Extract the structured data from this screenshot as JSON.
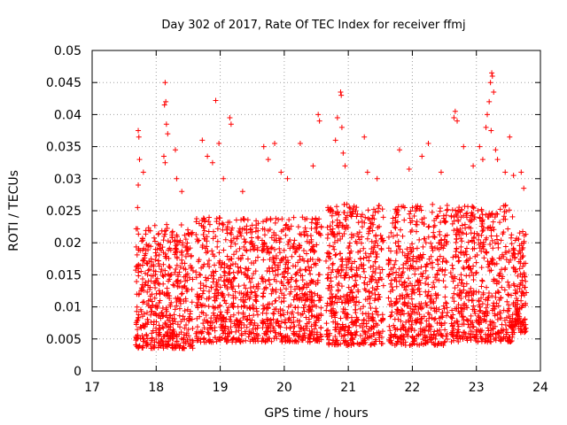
{
  "chart_data": {
    "type": "scatter",
    "title": "Day 302 of 2017, Rate Of TEC Index for receiver ffmj",
    "xlabel": "GPS time / hours",
    "ylabel": "ROTI / TECUs",
    "xlim": [
      17,
      24
    ],
    "ylim": [
      0,
      0.05
    ],
    "xticks": [
      "17",
      "18",
      "19",
      "20",
      "21",
      "22",
      "23",
      "24"
    ],
    "yticks": [
      "0",
      "0.005",
      "0.01",
      "0.015",
      "0.02",
      "0.025",
      "0.03",
      "0.035",
      "0.04",
      "0.045",
      "0.05"
    ],
    "grid": true,
    "marker": "+",
    "color": "#ff0000",
    "clusters": [
      {
        "x_start": 17.68,
        "x_end": 18.58,
        "y_min": 0.0035,
        "y_max": 0.023,
        "count": 520
      },
      {
        "x_start": 18.62,
        "x_end": 19.6,
        "y_min": 0.0045,
        "y_max": 0.024,
        "count": 520
      },
      {
        "x_start": 19.65,
        "x_end": 20.58,
        "y_min": 0.0045,
        "y_max": 0.024,
        "count": 520
      },
      {
        "x_start": 20.65,
        "x_end": 21.55,
        "y_min": 0.004,
        "y_max": 0.026,
        "count": 540
      },
      {
        "x_start": 21.62,
        "x_end": 22.55,
        "y_min": 0.004,
        "y_max": 0.026,
        "count": 520
      },
      {
        "x_start": 22.6,
        "x_end": 23.6,
        "y_min": 0.0045,
        "y_max": 0.026,
        "count": 560
      },
      {
        "x_start": 23.6,
        "x_end": 23.78,
        "y_min": 0.006,
        "y_max": 0.022,
        "count": 120
      }
    ],
    "outliers": [
      {
        "x": 17.72,
        "y": 0.0375
      },
      {
        "x": 17.73,
        "y": 0.0365
      },
      {
        "x": 17.72,
        "y": 0.029
      },
      {
        "x": 17.74,
        "y": 0.033
      },
      {
        "x": 17.71,
        "y": 0.0255
      },
      {
        "x": 17.8,
        "y": 0.031
      },
      {
        "x": 18.14,
        "y": 0.045
      },
      {
        "x": 18.15,
        "y": 0.042
      },
      {
        "x": 18.13,
        "y": 0.0415
      },
      {
        "x": 18.16,
        "y": 0.0385
      },
      {
        "x": 18.18,
        "y": 0.037
      },
      {
        "x": 18.12,
        "y": 0.0335
      },
      {
        "x": 18.14,
        "y": 0.0325
      },
      {
        "x": 18.3,
        "y": 0.0345
      },
      {
        "x": 18.32,
        "y": 0.03
      },
      {
        "x": 18.4,
        "y": 0.028
      },
      {
        "x": 18.72,
        "y": 0.036
      },
      {
        "x": 18.8,
        "y": 0.0335
      },
      {
        "x": 18.88,
        "y": 0.0325
      },
      {
        "x": 18.93,
        "y": 0.0422
      },
      {
        "x": 18.98,
        "y": 0.0355
      },
      {
        "x": 19.15,
        "y": 0.0395
      },
      {
        "x": 19.17,
        "y": 0.0385
      },
      {
        "x": 19.05,
        "y": 0.03
      },
      {
        "x": 19.35,
        "y": 0.028
      },
      {
        "x": 19.68,
        "y": 0.035
      },
      {
        "x": 19.75,
        "y": 0.033
      },
      {
        "x": 19.85,
        "y": 0.0355
      },
      {
        "x": 19.95,
        "y": 0.031
      },
      {
        "x": 20.05,
        "y": 0.03
      },
      {
        "x": 20.25,
        "y": 0.0355
      },
      {
        "x": 20.45,
        "y": 0.032
      },
      {
        "x": 20.53,
        "y": 0.04
      },
      {
        "x": 20.55,
        "y": 0.039
      },
      {
        "x": 20.8,
        "y": 0.036
      },
      {
        "x": 20.83,
        "y": 0.0395
      },
      {
        "x": 20.88,
        "y": 0.0435
      },
      {
        "x": 20.89,
        "y": 0.043
      },
      {
        "x": 20.9,
        "y": 0.038
      },
      {
        "x": 20.92,
        "y": 0.034
      },
      {
        "x": 20.95,
        "y": 0.032
      },
      {
        "x": 21.25,
        "y": 0.0365
      },
      {
        "x": 21.3,
        "y": 0.031
      },
      {
        "x": 21.45,
        "y": 0.03
      },
      {
        "x": 21.8,
        "y": 0.0345
      },
      {
        "x": 21.95,
        "y": 0.0315
      },
      {
        "x": 22.15,
        "y": 0.0335
      },
      {
        "x": 22.25,
        "y": 0.0355
      },
      {
        "x": 22.45,
        "y": 0.031
      },
      {
        "x": 22.65,
        "y": 0.0395
      },
      {
        "x": 22.67,
        "y": 0.0405
      },
      {
        "x": 22.7,
        "y": 0.039
      },
      {
        "x": 22.8,
        "y": 0.035
      },
      {
        "x": 22.95,
        "y": 0.032
      },
      {
        "x": 23.05,
        "y": 0.035
      },
      {
        "x": 23.1,
        "y": 0.033
      },
      {
        "x": 23.15,
        "y": 0.038
      },
      {
        "x": 23.17,
        "y": 0.04
      },
      {
        "x": 23.2,
        "y": 0.042
      },
      {
        "x": 23.22,
        "y": 0.045
      },
      {
        "x": 23.24,
        "y": 0.0465
      },
      {
        "x": 23.25,
        "y": 0.046
      },
      {
        "x": 23.27,
        "y": 0.0435
      },
      {
        "x": 23.23,
        "y": 0.0375
      },
      {
        "x": 23.3,
        "y": 0.0345
      },
      {
        "x": 23.33,
        "y": 0.033
      },
      {
        "x": 23.45,
        "y": 0.031
      },
      {
        "x": 23.52,
        "y": 0.0365
      },
      {
        "x": 23.58,
        "y": 0.0305
      },
      {
        "x": 23.7,
        "y": 0.031
      },
      {
        "x": 23.74,
        "y": 0.0285
      }
    ]
  }
}
